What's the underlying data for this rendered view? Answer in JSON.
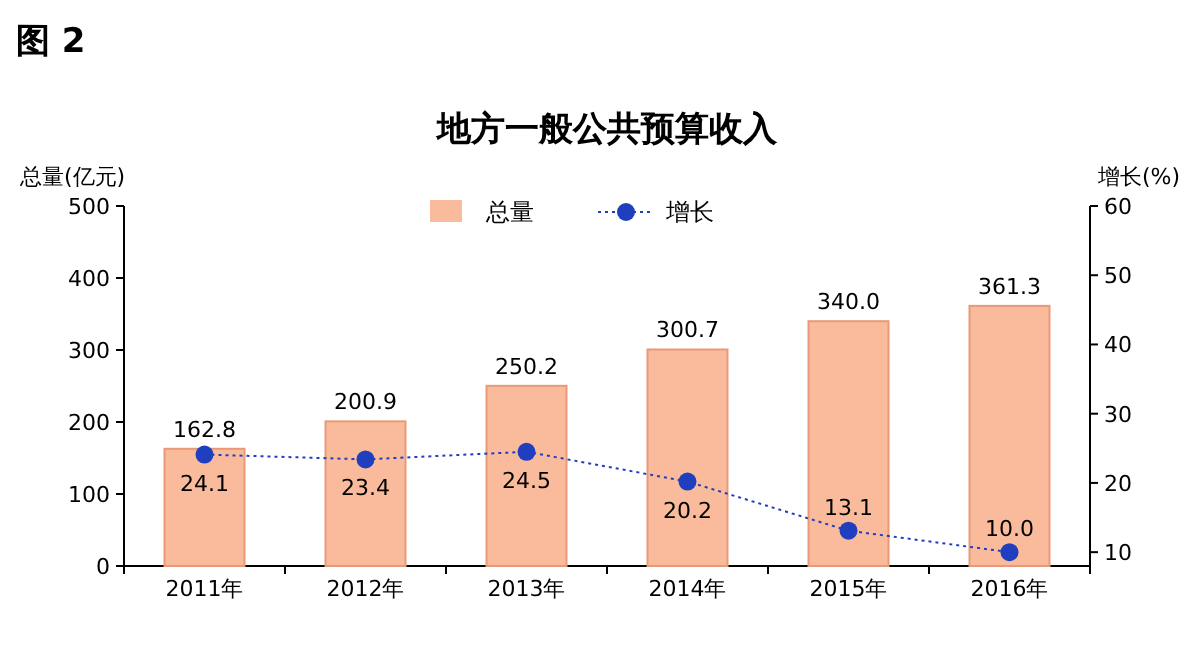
{
  "chart_data": {
    "type": "bar",
    "title": "地方一般公共预算收入",
    "ylabel": "总量(亿元)",
    "y2label": "增长(%)",
    "annotations": [
      "图 2"
    ],
    "categories": [
      "2011年",
      "2012年",
      "2013年",
      "2014年",
      "2015年",
      "2016年"
    ],
    "series": [
      {
        "name": "总量",
        "color": "#f9bb9b",
        "values": [
          162.8,
          200.9,
          250.2,
          300.7,
          340.0,
          361.3
        ],
        "value_labels": [
          "162.8",
          "200.9",
          "250.2",
          "300.7",
          "340.0",
          "361.3"
        ]
      },
      {
        "name": "增长",
        "type": "line",
        "axis": "y2",
        "color": "#1f3fbf",
        "marker": "circle",
        "line_style": "dotted",
        "values": [
          24.1,
          23.4,
          24.5,
          20.2,
          13.1,
          10.0
        ],
        "value_labels": [
          "24.1",
          "23.4",
          "24.5",
          "20.2",
          "13.1",
          "10.0"
        ]
      }
    ],
    "ylim": [
      0,
      500
    ],
    "yticks": [
      0,
      100,
      200,
      300,
      400,
      500
    ],
    "y2lim": [
      8,
      60
    ],
    "y2ticks": [
      10,
      20,
      30,
      40,
      50,
      60
    ],
    "legend": "top",
    "grid": false
  }
}
